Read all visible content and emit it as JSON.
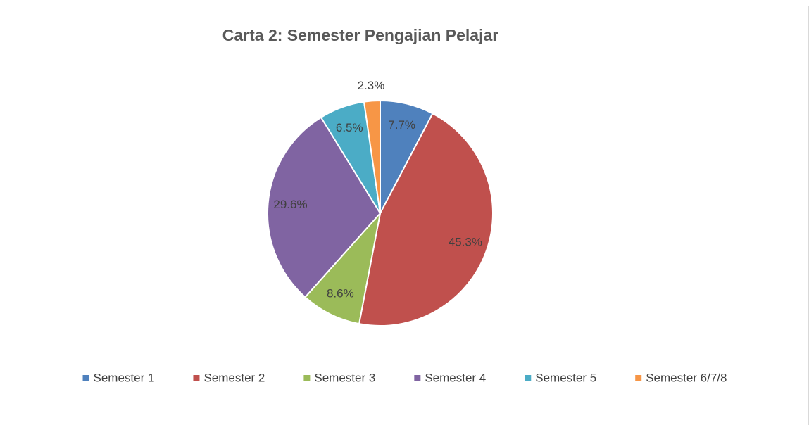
{
  "chart_data": {
    "type": "pie",
    "title": "Carta 2: Semester Pengajian Pelajar",
    "categories": [
      "Semester 1",
      "Semester 2",
      "Semester 3",
      "Semester 4",
      "Semester 5",
      "Semester 6/7/8"
    ],
    "values": [
      7.7,
      45.3,
      8.6,
      29.6,
      6.5,
      2.3
    ],
    "value_labels": [
      "7.7%",
      "45.3%",
      "8.6%",
      "29.6%",
      "6.5%",
      "2.3%"
    ],
    "colors": [
      "#4f81bd",
      "#c0504d",
      "#9bbb59",
      "#8064a2",
      "#4bacc6",
      "#f79646"
    ],
    "legend": "bottom"
  }
}
